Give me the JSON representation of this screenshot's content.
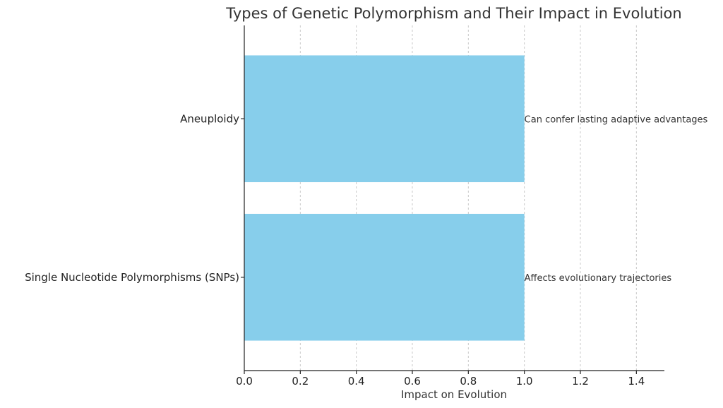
{
  "chart_data": {
    "type": "bar",
    "orientation": "horizontal",
    "title": "Types of Genetic Polymorphism and Their Impact in Evolution",
    "xlabel": "Impact on Evolution",
    "ylabel": "",
    "categories": [
      "Single Nucleotide Polymorphisms (SNPs)",
      "Aneuploidy"
    ],
    "values": [
      1.0,
      1.0
    ],
    "annotations": [
      "Affects evolutionary trajectories",
      "Can confer lasting adaptive advantages"
    ],
    "xlim": [
      0,
      1.5
    ],
    "xticks": [
      0.0,
      0.2,
      0.4,
      0.6,
      0.8,
      1.0,
      1.2,
      1.4
    ],
    "xtick_labels": [
      "0.0",
      "0.2",
      "0.4",
      "0.6",
      "0.8",
      "1.0",
      "1.2",
      "1.4"
    ],
    "grid": "x-dashed",
    "bar_color": "#87ceeb"
  }
}
